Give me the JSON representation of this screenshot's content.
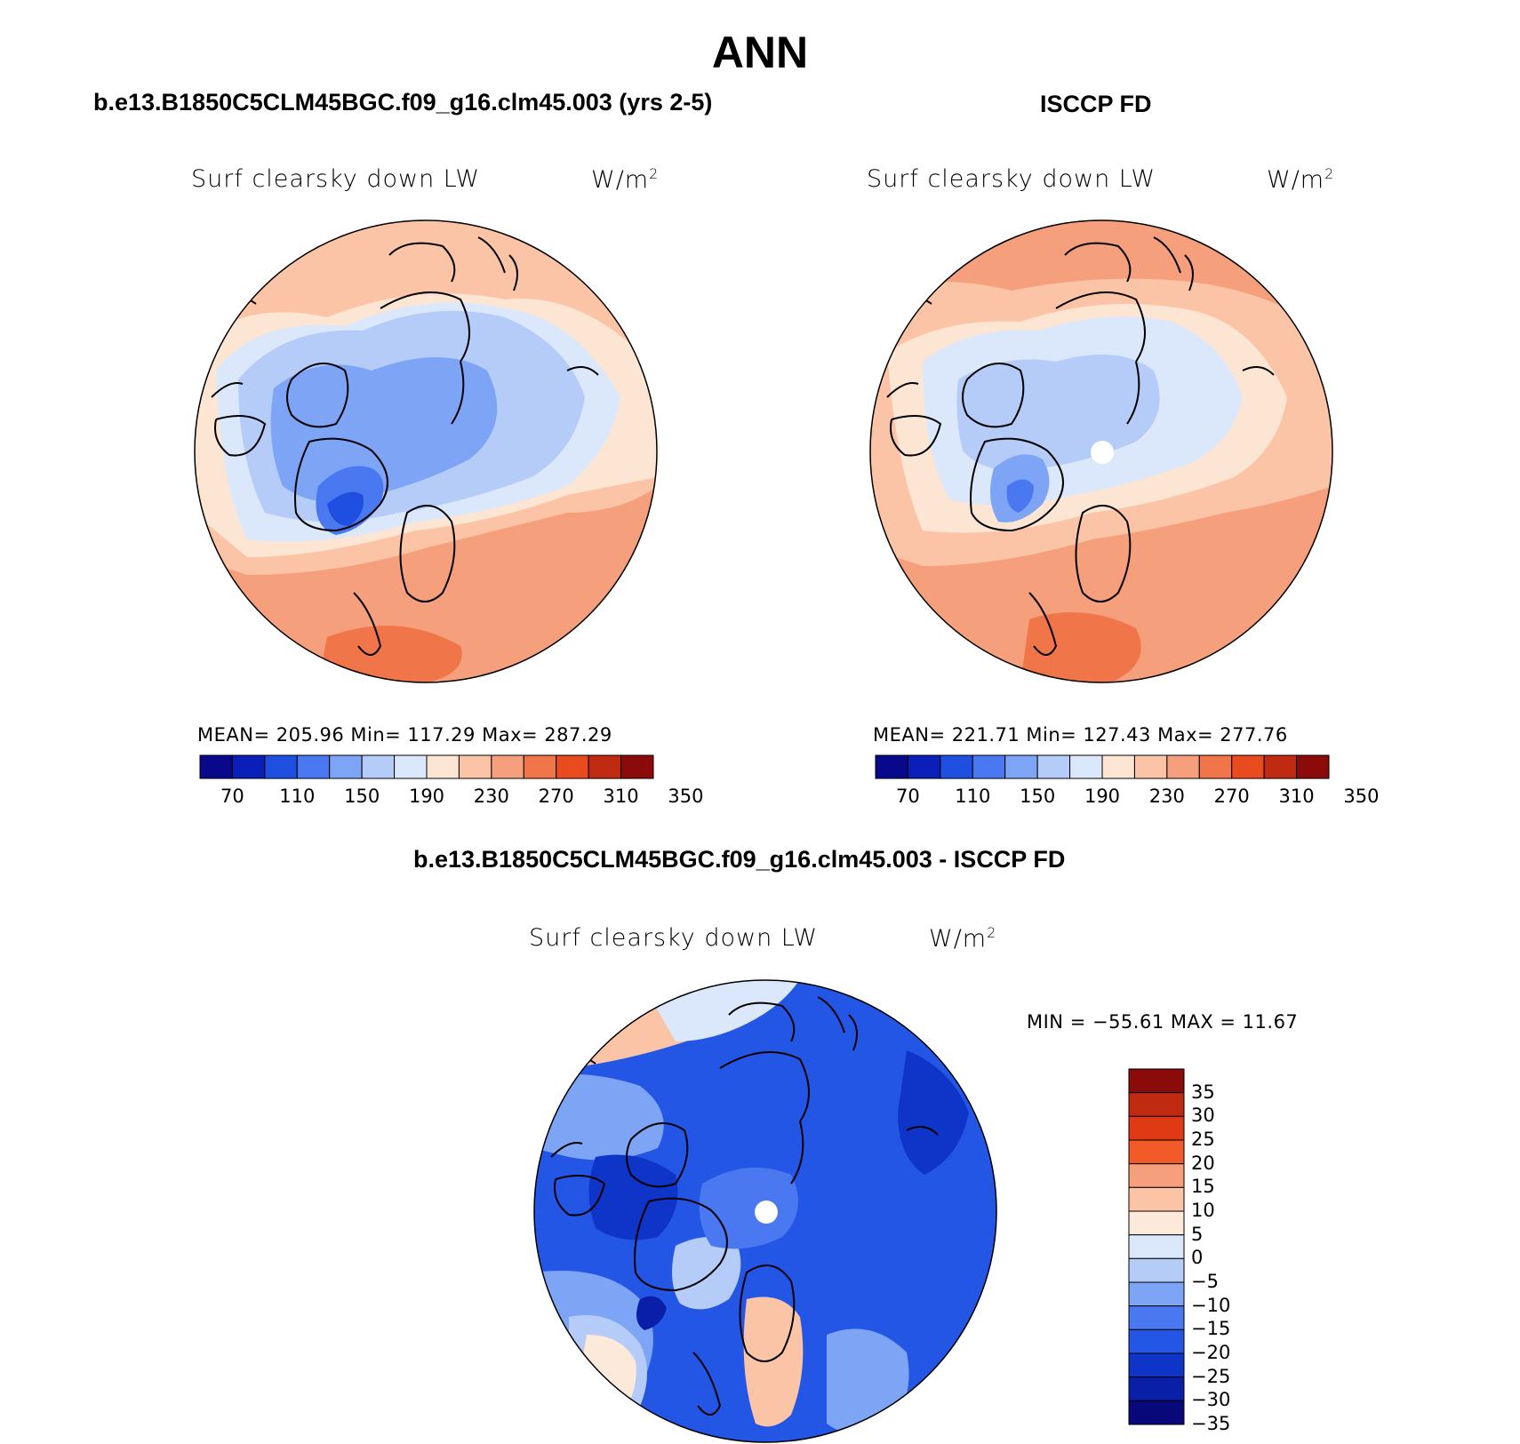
{
  "figure": {
    "title": "ANN",
    "diff_title": "b.e13.B1850C5CLM45BGC.f09_g16.clm45.003 - ISCCP FD"
  },
  "panels": [
    {
      "id": "model",
      "header": "b.e13.B1850C5CLM45BGC.f09_g16.clm45.003 (yrs 2-5)",
      "variable": "Surf clearsky down LW",
      "units": "W/m",
      "units_sup": "2",
      "stats": "MEAN= 205.96   Min= 117.29   Max= 287.29",
      "mean": 205.96,
      "min": 117.29,
      "max": 287.29
    },
    {
      "id": "obs",
      "header": "ISCCP FD",
      "variable": "Surf clearsky down LW",
      "units": "W/m",
      "units_sup": "2",
      "stats": "MEAN= 221.71   Min= 127.43   Max= 277.76",
      "mean": 221.71,
      "min": 127.43,
      "max": 277.76
    },
    {
      "id": "diff",
      "variable": "Surf clearsky down LW",
      "units": "W/m",
      "units_sup": "2",
      "stats": "MIN = −55.61  MAX =   11.67",
      "min": -55.61,
      "max": 11.67
    }
  ],
  "colorbar_abs": {
    "ticks": [
      "70",
      "110",
      "150",
      "190",
      "230",
      "270",
      "310",
      "350"
    ],
    "colors": [
      "#08088a",
      "#0a1fb8",
      "#1f4fe0",
      "#4a78f0",
      "#7ea4f5",
      "#b5cbf8",
      "#dbe8fb",
      "#fde5d4",
      "#fbc4a6",
      "#f59f7c",
      "#f07548",
      "#e84c1e",
      "#c02a10",
      "#8b0a0a"
    ]
  },
  "colorbar_diff": {
    "ticks": [
      "35",
      "30",
      "25",
      "20",
      "15",
      "10",
      "5",
      "0",
      "−5",
      "−10",
      "−15",
      "−20",
      "−25",
      "−30",
      "−35"
    ],
    "colors": [
      "#8b0a0a",
      "#c02a10",
      "#e03a14",
      "#f25a28",
      "#f59f7c",
      "#fbc4a6",
      "#fde9da",
      "#dbe8fb",
      "#b5cbf8",
      "#7ea4f5",
      "#4a78f0",
      "#2456e6",
      "#0f34c8",
      "#0a1fa8",
      "#08087a"
    ]
  }
}
